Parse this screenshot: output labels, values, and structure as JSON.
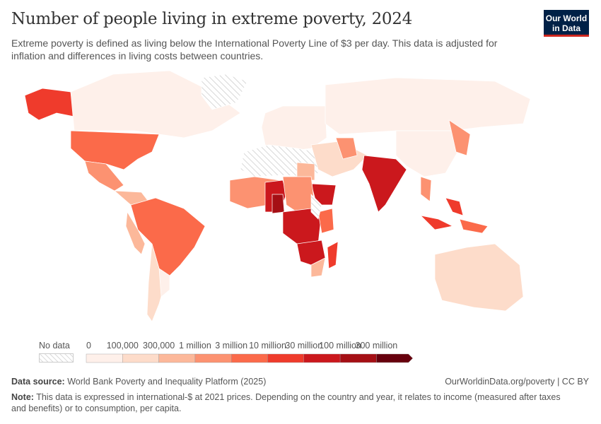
{
  "header": {
    "title": "Number of people living in extreme poverty, 2024",
    "subtitle": "Extreme poverty is defined as living below the International Poverty Line of $3 per day. This data is adjusted for inflation and differences in living costs between countries.",
    "logo_line1": "Our World",
    "logo_line2": "in Data"
  },
  "legend": {
    "no_data_label": "No data",
    "ticks": [
      "0",
      "100,000",
      "300,000",
      "1 million",
      "3 million",
      "10 million",
      "30 million",
      "100 million",
      "300 million"
    ],
    "colors": [
      "#fef0ea",
      "#fddcca",
      "#fcb89a",
      "#fc9271",
      "#fb6a4a",
      "#ef3b2c",
      "#cb181d",
      "#a50f15",
      "#67000d"
    ],
    "no_data_pattern": "hatched-gray"
  },
  "footer": {
    "source_label": "Data source:",
    "source_text": "World Bank Poverty and Inequality Platform (2025)",
    "url": "OurWorldinData.org/poverty | CC BY",
    "note_label": "Note:",
    "note_text": "This data is expressed in international-$ at 2021 prices. Depending on the country and year, it relates to income (measured after taxes and benefits) or to consumption, per capita."
  }
}
